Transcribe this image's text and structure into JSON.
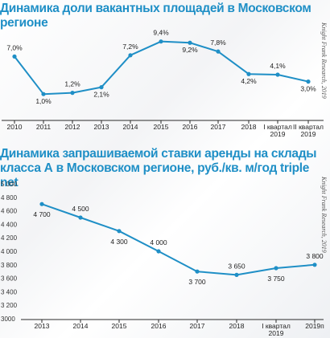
{
  "chart_data": [
    {
      "type": "line",
      "title": "Динамика доли вакантных площадей в Московском регионе",
      "source": "Knight Frank Research, 2019",
      "categories": [
        "2010",
        "2011",
        "2012",
        "2013",
        "2014",
        "2015",
        "2016",
        "2017",
        "2018",
        "I квартал 2019",
        "II квартал 2019"
      ],
      "values": [
        7.0,
        1.0,
        1.2,
        2.1,
        7.2,
        9.4,
        9.2,
        7.8,
        4.2,
        4.1,
        3.0
      ],
      "data_labels": [
        "7,0%",
        "1,0%",
        "1,2%",
        "2,1%",
        "7,2%",
        "9,4%",
        "9,2%",
        "7,8%",
        "4,2%",
        "4,1%",
        "3,0%"
      ],
      "ylim": [
        0,
        10
      ],
      "line_color": "#1f8fc6",
      "grid": false
    },
    {
      "type": "line",
      "title": "Динамика запрашиваемой ставки аренды на склады класса А в Московском регионе, руб./кв. м/год triple net",
      "source": "Knight Frank Research, 2019",
      "categories": [
        "2013",
        "2014",
        "2015",
        "2016",
        "2017",
        "2018",
        "I квартал 2019",
        "2019п"
      ],
      "points": [
        {
          "x": 0,
          "y": 4700,
          "label": "4 700"
        },
        {
          "x": 1,
          "y": 4500,
          "label": "4 500"
        },
        {
          "x": 2,
          "y": 4300,
          "label": "4 300"
        },
        {
          "x": 3,
          "y": 4000,
          "label": "4 000"
        },
        {
          "x": 4,
          "y": 3700,
          "label": "3 700"
        },
        {
          "x": 5,
          "y": 3650,
          "label": "3 650"
        },
        {
          "x": 6,
          "y": 3750,
          "label": "3 750"
        },
        {
          "x": 7,
          "y": 3800,
          "label": "3 800"
        }
      ],
      "yticks": [
        "5 000",
        "4 800",
        "4 600",
        "4 400",
        "4 200",
        "4 000",
        "3 800",
        "3 600",
        "3 400",
        "3 200",
        "3000"
      ],
      "ylim": [
        3000,
        5000
      ],
      "line_color": "#1f8fc6",
      "grid": false
    }
  ]
}
